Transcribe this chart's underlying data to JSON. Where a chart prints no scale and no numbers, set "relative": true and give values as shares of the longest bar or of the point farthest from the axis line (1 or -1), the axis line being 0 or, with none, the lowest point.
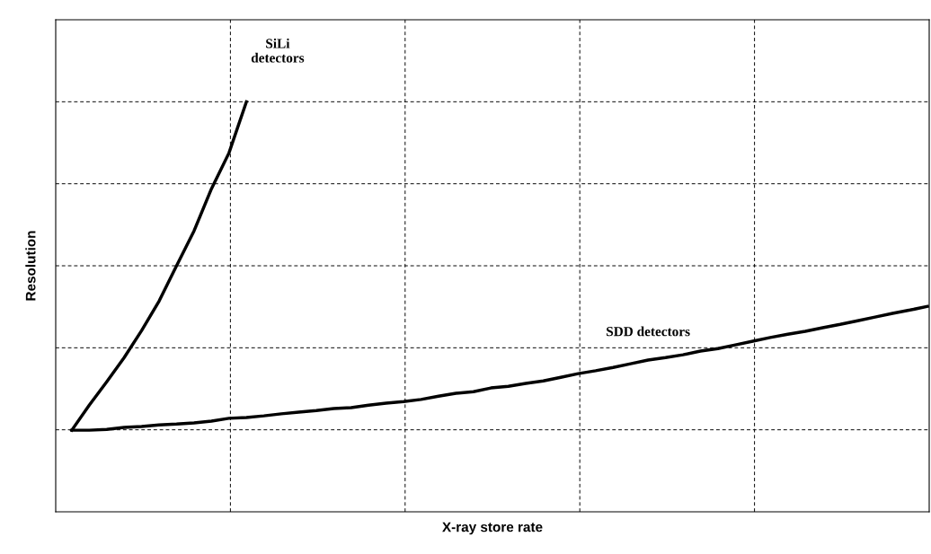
{
  "chart_data": {
    "type": "line",
    "relative": true,
    "xlabel": "X-ray store rate",
    "ylabel": "Resolution",
    "grid": true,
    "legend": false,
    "line_style": "solid",
    "marker": "none",
    "categories": [
      null,
      null,
      null,
      null,
      null,
      null,
      null,
      null,
      null,
      null,
      null,
      null,
      null,
      null,
      null,
      null,
      null,
      null,
      null,
      null,
      null,
      null,
      null,
      null,
      null,
      null,
      null,
      null,
      null,
      null,
      null,
      null,
      null,
      null,
      null,
      null,
      null,
      null,
      null,
      null,
      null,
      null,
      null,
      null,
      null,
      null,
      null,
      null,
      null,
      null
    ],
    "series": [
      {
        "name": "SiLi\ndetectors",
        "color": "#000000",
        "values": [
          0.199,
          0.26,
          0.317,
          0.376,
          0.442,
          0.514,
          0.6,
          0.685,
          0.788,
          0.875,
          1.0,
          null,
          null,
          null,
          null,
          null,
          null,
          null,
          null,
          null,
          null,
          null,
          null,
          null,
          null,
          null,
          null,
          null,
          null,
          null,
          null,
          null,
          null,
          null,
          null,
          null,
          null,
          null,
          null,
          null,
          null,
          null,
          null,
          null,
          null,
          null,
          null,
          null,
          null,
          null
        ]
      },
      {
        "name": "SDD detectors",
        "color": "#000000",
        "values": [
          0.199,
          0.199,
          0.201,
          0.206,
          0.208,
          0.212,
          0.214,
          0.217,
          0.221,
          0.228,
          0.23,
          0.234,
          0.239,
          0.243,
          0.247,
          0.252,
          0.254,
          0.26,
          0.265,
          0.269,
          0.274,
          0.282,
          0.289,
          0.293,
          0.302,
          0.306,
          0.313,
          0.319,
          0.328,
          0.337,
          0.344,
          0.352,
          0.361,
          0.37,
          0.376,
          0.383,
          0.392,
          0.398,
          0.407,
          0.416,
          0.425,
          0.433,
          0.44,
          0.449,
          0.457,
          0.466,
          0.475,
          0.484,
          0.492,
          0.501
        ]
      }
    ]
  }
}
